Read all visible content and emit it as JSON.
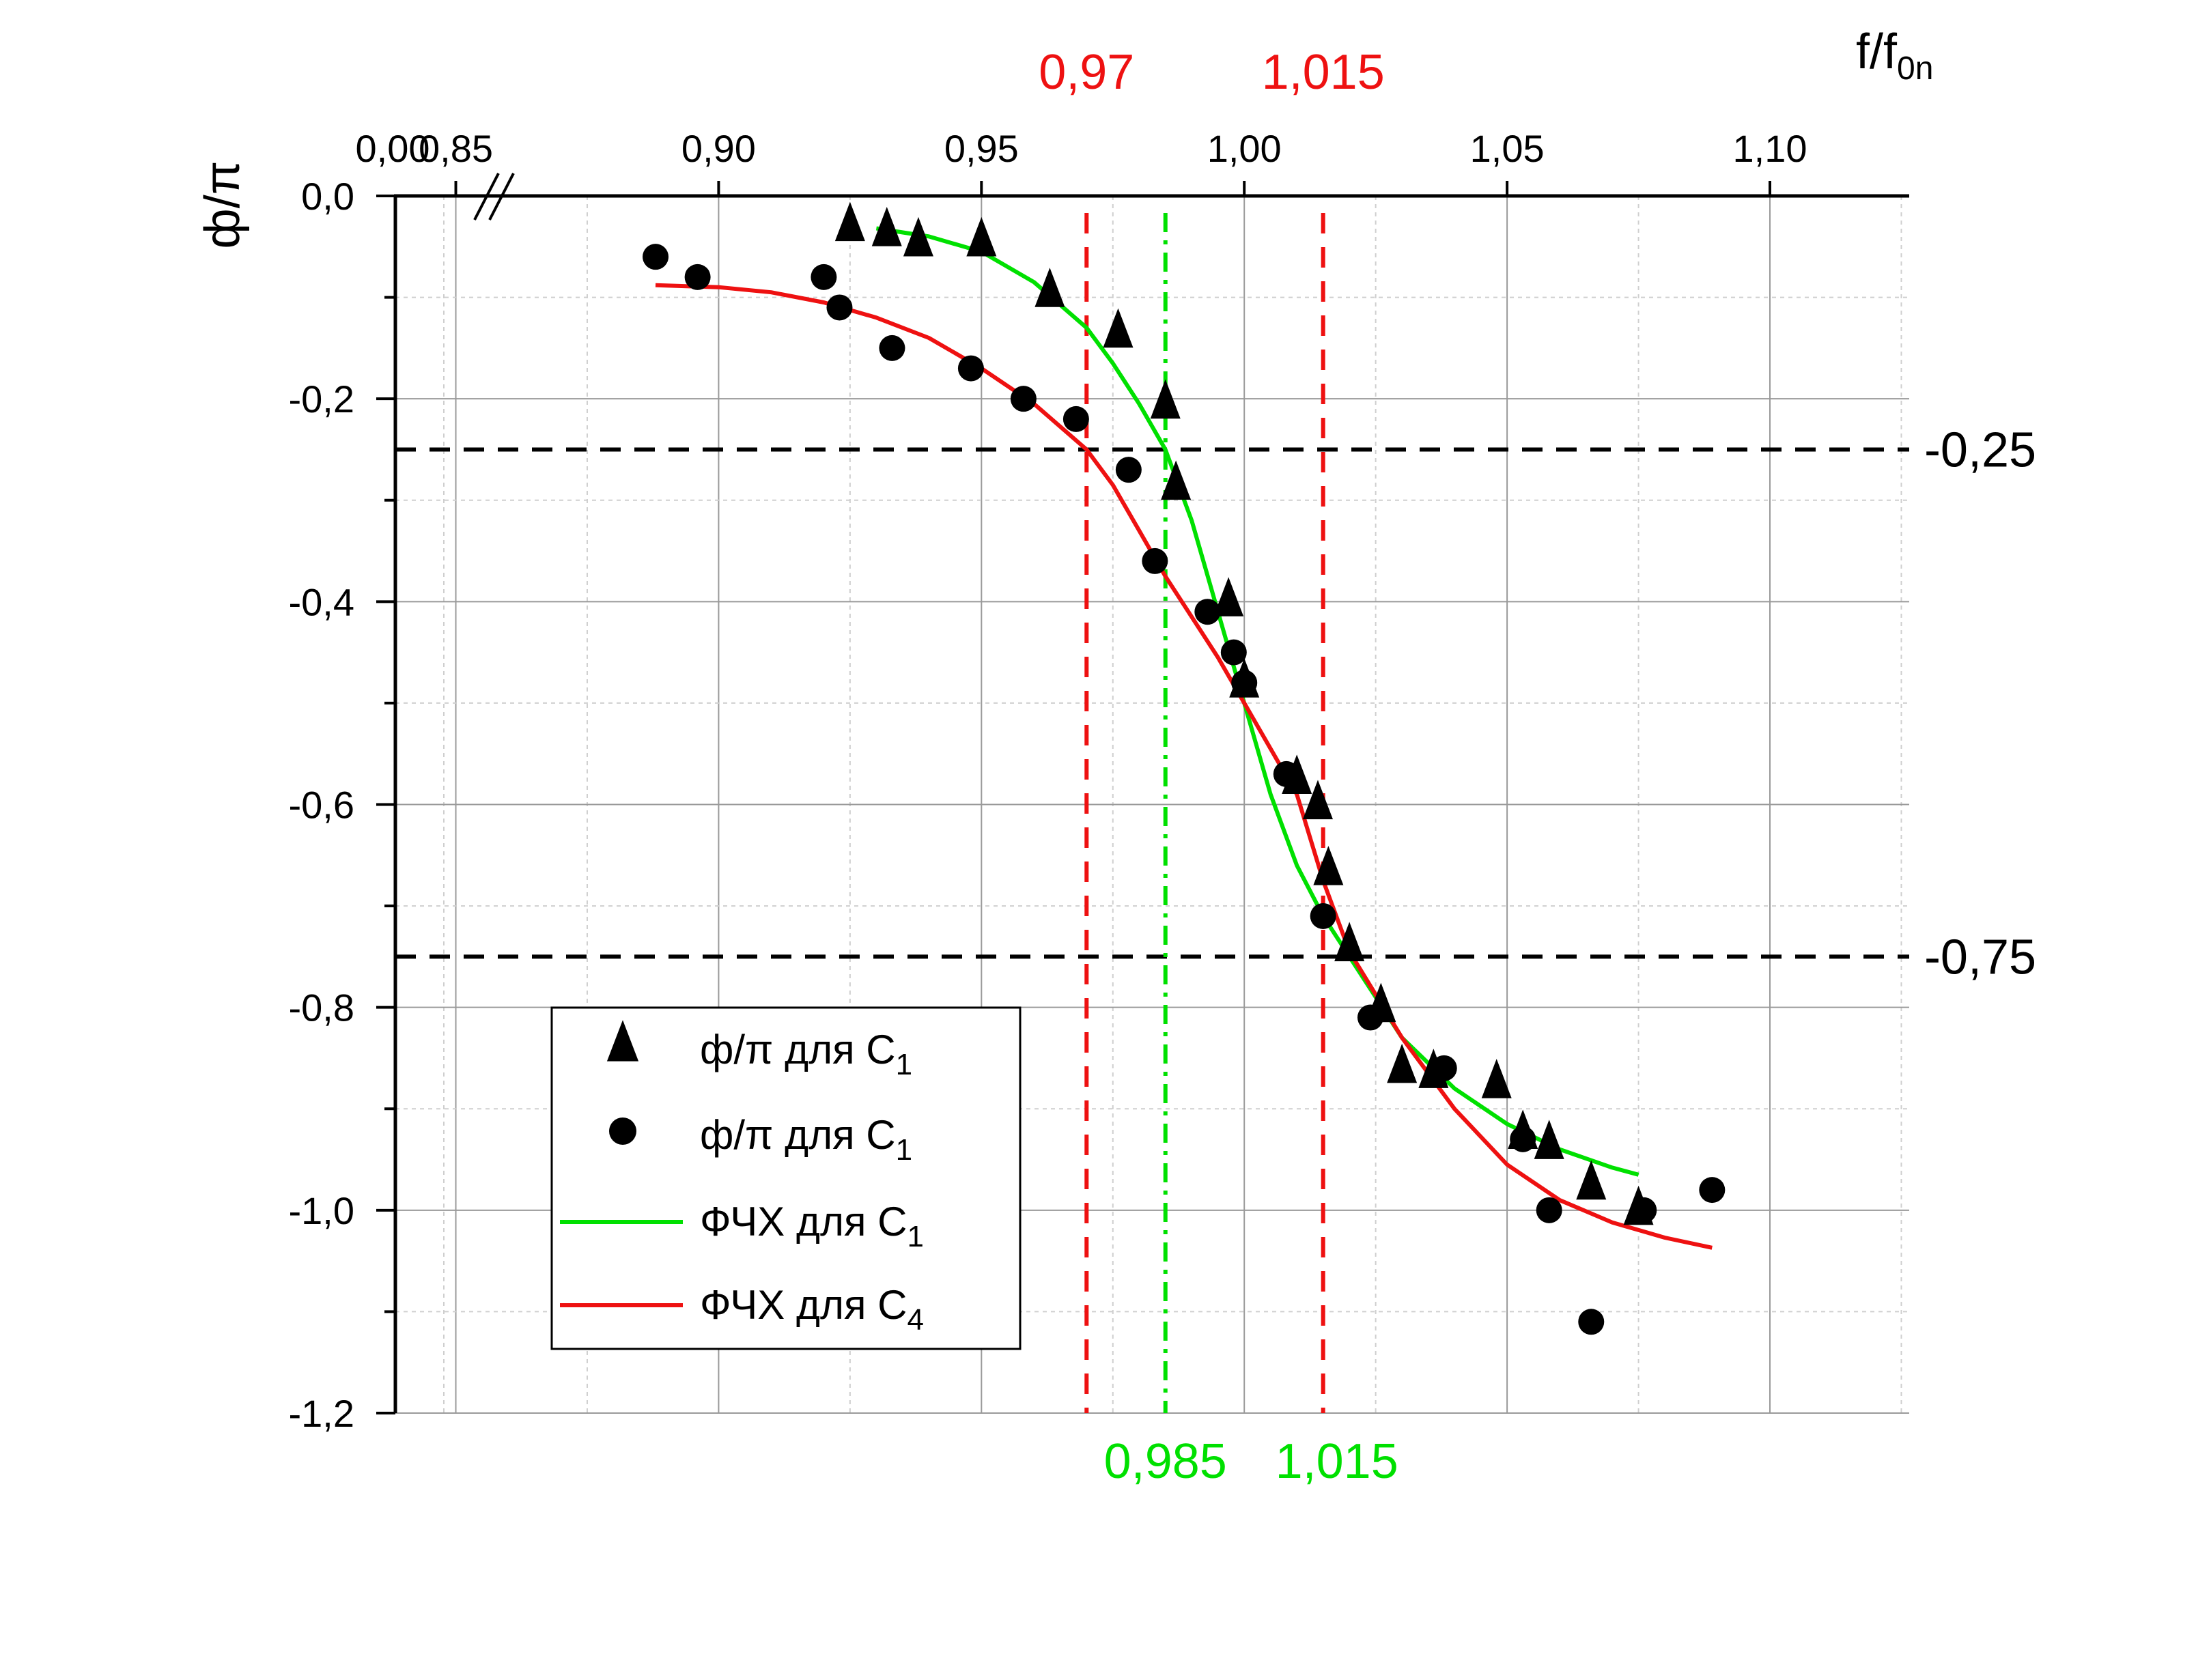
{
  "chart_data": {
    "type": "scatter",
    "x_axis_label_main": "f/f",
    "x_axis_label_sub": "0n",
    "y_axis_label": "ф/π",
    "x_ticks": [
      {
        "value": 0.85,
        "label": "0,85"
      },
      {
        "value": 0.9,
        "label": "0,90"
      },
      {
        "value": 0.95,
        "label": "0,95"
      },
      {
        "value": 1.0,
        "label": "1,00"
      },
      {
        "value": 1.05,
        "label": "1,05"
      },
      {
        "value": 1.1,
        "label": "1,10"
      }
    ],
    "x_break_label": "0,00",
    "y_ticks": [
      {
        "value": 0.0,
        "label": "0,0"
      },
      {
        "value": -0.2,
        "label": "-0,2"
      },
      {
        "value": -0.4,
        "label": "-0,4"
      },
      {
        "value": -0.6,
        "label": "-0,6"
      },
      {
        "value": -0.8,
        "label": "-0,8"
      },
      {
        "value": -1.0,
        "label": "-1,0"
      },
      {
        "value": -1.2,
        "label": "-1,2"
      }
    ],
    "xlim": [
      0.8385,
      1.1265
    ],
    "ylim": [
      -1.2,
      0.0
    ],
    "grid": true,
    "axis_break": true,
    "colors": {
      "triangles": "#000000",
      "circles": "#000000",
      "green": "#00e000",
      "red": "#ee1111",
      "hline": "#000000"
    },
    "hlines": [
      {
        "y": -0.25,
        "label": "-0,25"
      },
      {
        "y": -0.75,
        "label": "-0,75"
      }
    ],
    "vlines": [
      {
        "x": 0.97,
        "color": "red",
        "style": "dash",
        "label": "0,97",
        "label_pos": "top"
      },
      {
        "x": 0.985,
        "color": "green",
        "style": "dashdot",
        "label": "0,985",
        "label_pos": "bottom"
      },
      {
        "x": 1.015,
        "color": "red",
        "style": "dash",
        "label": "1,015",
        "label_pos": "top"
      }
    ],
    "bottom_extra_label": {
      "x": 1.015,
      "label": "1,015",
      "color": "green"
    },
    "series": [
      {
        "name": "ф/π для C",
        "name_sub": "1",
        "marker": "triangle",
        "points": [
          [
            0.925,
            -0.03
          ],
          [
            0.932,
            -0.035
          ],
          [
            0.938,
            -0.045
          ],
          [
            0.95,
            -0.045
          ],
          [
            0.963,
            -0.095
          ],
          [
            0.976,
            -0.135
          ],
          [
            0.985,
            -0.205
          ],
          [
            0.987,
            -0.285
          ],
          [
            0.997,
            -0.4
          ],
          [
            1.0,
            -0.48
          ],
          [
            1.01,
            -0.575
          ],
          [
            1.014,
            -0.6
          ],
          [
            1.016,
            -0.665
          ],
          [
            1.02,
            -0.74
          ],
          [
            1.026,
            -0.8
          ],
          [
            1.03,
            -0.86
          ],
          [
            1.036,
            -0.865
          ],
          [
            1.048,
            -0.875
          ],
          [
            1.053,
            -0.925
          ],
          [
            1.058,
            -0.935
          ],
          [
            1.066,
            -0.975
          ],
          [
            1.075,
            -1.0
          ]
        ]
      },
      {
        "name": "ф/π для C",
        "name_sub": "1",
        "marker": "circle",
        "points": [
          [
            0.888,
            -0.06
          ],
          [
            0.896,
            -0.08
          ],
          [
            0.92,
            -0.08
          ],
          [
            0.923,
            -0.11
          ],
          [
            0.933,
            -0.15
          ],
          [
            0.948,
            -0.17
          ],
          [
            0.958,
            -0.2
          ],
          [
            0.968,
            -0.22
          ],
          [
            0.978,
            -0.27
          ],
          [
            0.983,
            -0.36
          ],
          [
            0.993,
            -0.41
          ],
          [
            0.998,
            -0.45
          ],
          [
            1.0,
            -0.48
          ],
          [
            1.008,
            -0.57
          ],
          [
            1.015,
            -0.71
          ],
          [
            1.024,
            -0.81
          ],
          [
            1.038,
            -0.86
          ],
          [
            1.053,
            -0.93
          ],
          [
            1.058,
            -1.0
          ],
          [
            1.066,
            -1.11
          ],
          [
            1.076,
            -1.0
          ],
          [
            1.089,
            -0.98
          ]
        ]
      },
      {
        "name": "ФЧХ для C",
        "name_sub": "1",
        "marker": "line",
        "color": "green",
        "points": [
          [
            0.93,
            -0.032
          ],
          [
            0.94,
            -0.04
          ],
          [
            0.95,
            -0.055
          ],
          [
            0.96,
            -0.085
          ],
          [
            0.97,
            -0.13
          ],
          [
            0.975,
            -0.165
          ],
          [
            0.98,
            -0.205
          ],
          [
            0.985,
            -0.25
          ],
          [
            0.99,
            -0.32
          ],
          [
            0.995,
            -0.41
          ],
          [
            1.0,
            -0.5
          ],
          [
            1.005,
            -0.59
          ],
          [
            1.01,
            -0.66
          ],
          [
            1.015,
            -0.71
          ],
          [
            1.02,
            -0.75
          ],
          [
            1.03,
            -0.83
          ],
          [
            1.04,
            -0.88
          ],
          [
            1.05,
            -0.915
          ],
          [
            1.06,
            -0.94
          ],
          [
            1.07,
            -0.958
          ],
          [
            1.075,
            -0.965
          ]
        ]
      },
      {
        "name": "ФЧХ для C",
        "name_sub": "4",
        "marker": "line",
        "color": "red",
        "points": [
          [
            0.888,
            -0.088
          ],
          [
            0.9,
            -0.09
          ],
          [
            0.91,
            -0.095
          ],
          [
            0.92,
            -0.105
          ],
          [
            0.93,
            -0.12
          ],
          [
            0.94,
            -0.14
          ],
          [
            0.95,
            -0.17
          ],
          [
            0.96,
            -0.205
          ],
          [
            0.97,
            -0.25
          ],
          [
            0.975,
            -0.285
          ],
          [
            0.98,
            -0.33
          ],
          [
            0.985,
            -0.375
          ],
          [
            0.99,
            -0.415
          ],
          [
            0.995,
            -0.455
          ],
          [
            1.0,
            -0.5
          ],
          [
            1.005,
            -0.545
          ],
          [
            1.01,
            -0.59
          ],
          [
            1.015,
            -0.675
          ],
          [
            1.02,
            -0.745
          ],
          [
            1.03,
            -0.83
          ],
          [
            1.04,
            -0.9
          ],
          [
            1.05,
            -0.955
          ],
          [
            1.06,
            -0.99
          ],
          [
            1.07,
            -1.012
          ],
          [
            1.08,
            -1.027
          ],
          [
            1.089,
            -1.037
          ]
        ]
      }
    ]
  }
}
